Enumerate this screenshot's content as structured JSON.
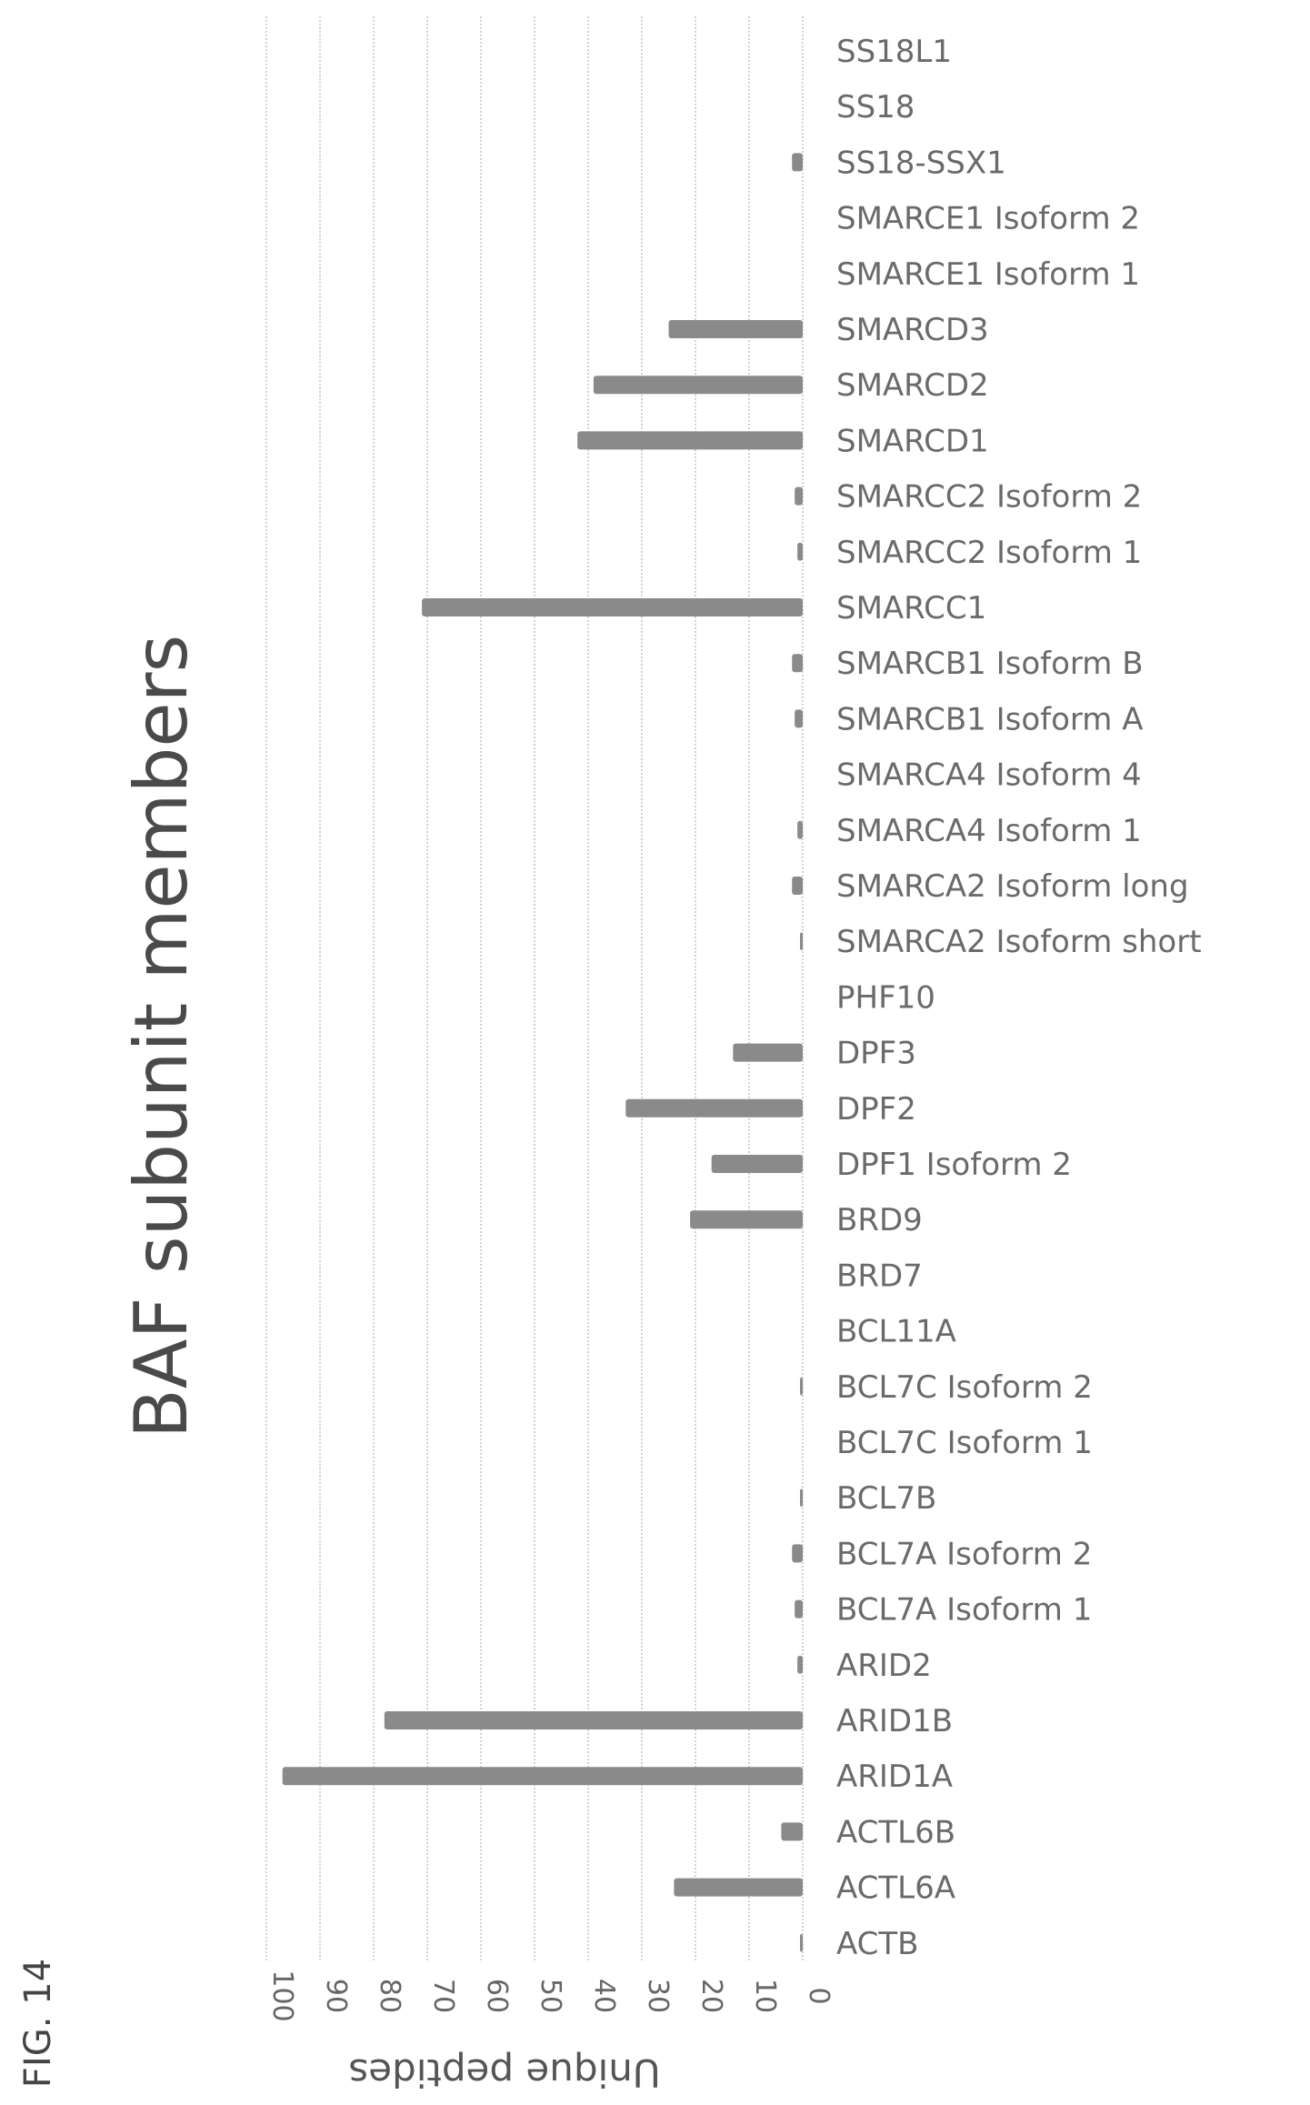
{
  "figure_label": "FIG. 14",
  "chart_data": {
    "type": "bar",
    "orientation": "horizontal",
    "title": "BAF subunit members",
    "xlabel": "Unique peptides",
    "ylabel": "",
    "xlim": [
      0,
      100
    ],
    "x_ticks": [
      "0",
      "10",
      "20",
      "30",
      "40",
      "50",
      "60",
      "70",
      "80",
      "90",
      "100"
    ],
    "grid": true,
    "color": "#8a8a8a",
    "categories": [
      "ACTB",
      "ACTL6A",
      "ACTL6B",
      "ARID1A",
      "ARID1B",
      "ARID2",
      "BCL7A Isoform 1",
      "BCL7A Isoform 2",
      "BCL7B",
      "BCL7C Isoform 1",
      "BCL7C Isoform 2",
      "BCL11A",
      "BRD7",
      "BRD9",
      "DPF1 Isoform 2",
      "DPF2",
      "DPF3",
      "PHF10",
      "SMARCA2 Isoform short",
      "SMARCA2 Isoform long",
      "SMARCA4 Isoform 1",
      "SMARCA4 Isoform 4",
      "SMARCB1 Isoform A",
      "SMARCB1 Isoform B",
      "SMARCC1",
      "SMARCC2 Isoform 1",
      "SMARCC2 Isoform 2",
      "SMARCD1",
      "SMARCD2",
      "SMARCD3",
      "SMARCE1 Isoform 1",
      "SMARCE1 Isoform 2",
      "SS18-SSX1",
      "SS18",
      "SS18L1"
    ],
    "values": [
      0.5,
      24,
      4,
      97,
      78,
      1,
      1.5,
      2,
      0.5,
      0,
      0.5,
      0,
      0,
      21,
      17,
      33,
      13,
      0,
      0.5,
      2,
      1,
      0,
      1.5,
      2,
      71,
      1,
      1.5,
      42,
      39,
      25,
      0,
      0,
      2,
      0,
      0
    ]
  }
}
